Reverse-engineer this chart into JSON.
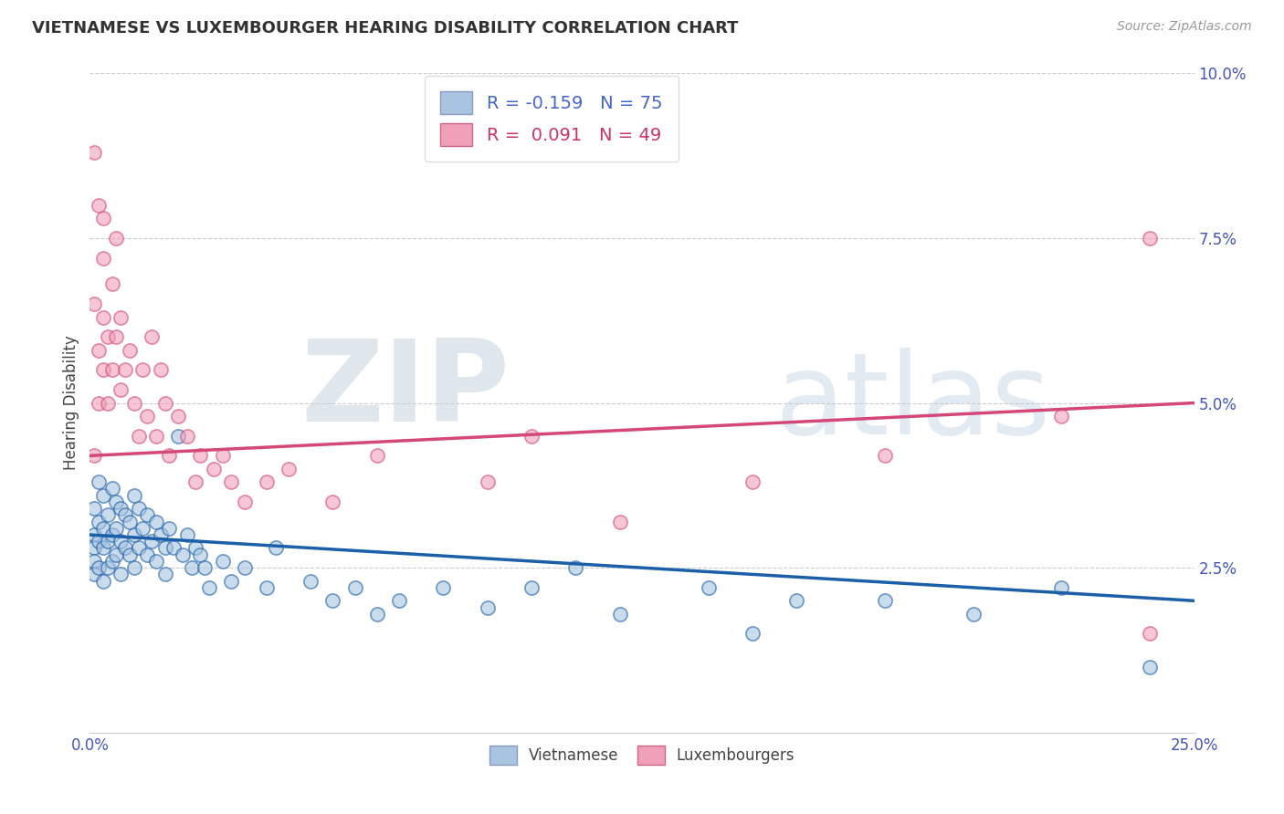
{
  "title": "VIETNAMESE VS LUXEMBOURGER HEARING DISABILITY CORRELATION CHART",
  "source": "Source: ZipAtlas.com",
  "ylabel": "Hearing Disability",
  "xlim": [
    0.0,
    0.25
  ],
  "ylim": [
    0.0,
    0.1
  ],
  "xticks": [
    0.0,
    0.05,
    0.1,
    0.15,
    0.2,
    0.25
  ],
  "yticks": [
    0.0,
    0.025,
    0.05,
    0.075,
    0.1
  ],
  "xtick_labels": [
    "0.0%",
    "",
    "",
    "",
    "",
    "25.0%"
  ],
  "ytick_labels": [
    "",
    "2.5%",
    "5.0%",
    "7.5%",
    "10.0%"
  ],
  "background_color": "#ffffff",
  "watermark_zip": "ZIP",
  "watermark_atlas": "atlas",
  "vietnamese_R": -0.159,
  "vietnamese_N": 75,
  "luxembourger_R": 0.091,
  "luxembourger_N": 49,
  "vietnamese_color": "#a8c4e0",
  "luxembourger_color": "#f0a0b8",
  "vietnamese_line_color": "#1a5fa8",
  "luxembourger_line_color": "#d44878",
  "legend_label_vietnamese": "Vietnamese",
  "legend_label_luxembourger": "Luxembourgers",
  "viet_line_x0": 0.0,
  "viet_line_y0": 0.03,
  "viet_line_x1": 0.25,
  "viet_line_y1": 0.02,
  "lux_line_x0": 0.0,
  "lux_line_y0": 0.042,
  "lux_line_x1": 0.25,
  "lux_line_y1": 0.05,
  "viet_pts_x": [
    0.001,
    0.001,
    0.001,
    0.001,
    0.001,
    0.002,
    0.002,
    0.002,
    0.002,
    0.003,
    0.003,
    0.003,
    0.003,
    0.004,
    0.004,
    0.004,
    0.005,
    0.005,
    0.005,
    0.006,
    0.006,
    0.006,
    0.007,
    0.007,
    0.007,
    0.008,
    0.008,
    0.009,
    0.009,
    0.01,
    0.01,
    0.01,
    0.011,
    0.011,
    0.012,
    0.013,
    0.013,
    0.014,
    0.015,
    0.015,
    0.016,
    0.017,
    0.017,
    0.018,
    0.019,
    0.02,
    0.021,
    0.022,
    0.023,
    0.024,
    0.025,
    0.026,
    0.027,
    0.03,
    0.032,
    0.035,
    0.04,
    0.042,
    0.05,
    0.055,
    0.06,
    0.065,
    0.07,
    0.08,
    0.09,
    0.1,
    0.11,
    0.12,
    0.14,
    0.15,
    0.16,
    0.18,
    0.2,
    0.22,
    0.24
  ],
  "viet_pts_y": [
    0.034,
    0.03,
    0.028,
    0.026,
    0.024,
    0.038,
    0.032,
    0.029,
    0.025,
    0.036,
    0.031,
    0.028,
    0.023,
    0.033,
    0.029,
    0.025,
    0.037,
    0.03,
    0.026,
    0.035,
    0.031,
    0.027,
    0.034,
    0.029,
    0.024,
    0.033,
    0.028,
    0.032,
    0.027,
    0.036,
    0.03,
    0.025,
    0.034,
    0.028,
    0.031,
    0.033,
    0.027,
    0.029,
    0.032,
    0.026,
    0.03,
    0.028,
    0.024,
    0.031,
    0.028,
    0.045,
    0.027,
    0.03,
    0.025,
    0.028,
    0.027,
    0.025,
    0.022,
    0.026,
    0.023,
    0.025,
    0.022,
    0.028,
    0.023,
    0.02,
    0.022,
    0.018,
    0.02,
    0.022,
    0.019,
    0.022,
    0.025,
    0.018,
    0.022,
    0.015,
    0.02,
    0.02,
    0.018,
    0.022,
    0.01
  ],
  "lux_pts_x": [
    0.001,
    0.001,
    0.002,
    0.002,
    0.003,
    0.003,
    0.003,
    0.004,
    0.004,
    0.005,
    0.005,
    0.006,
    0.006,
    0.007,
    0.007,
    0.008,
    0.009,
    0.01,
    0.011,
    0.012,
    0.013,
    0.014,
    0.015,
    0.016,
    0.017,
    0.018,
    0.02,
    0.022,
    0.024,
    0.025,
    0.028,
    0.03,
    0.032,
    0.035,
    0.04,
    0.045,
    0.055,
    0.065,
    0.09,
    0.1,
    0.12,
    0.15,
    0.18,
    0.22,
    0.24,
    0.001,
    0.002,
    0.003,
    0.24
  ],
  "lux_pts_y": [
    0.042,
    0.065,
    0.058,
    0.05,
    0.072,
    0.063,
    0.055,
    0.06,
    0.05,
    0.068,
    0.055,
    0.075,
    0.06,
    0.063,
    0.052,
    0.055,
    0.058,
    0.05,
    0.045,
    0.055,
    0.048,
    0.06,
    0.045,
    0.055,
    0.05,
    0.042,
    0.048,
    0.045,
    0.038,
    0.042,
    0.04,
    0.042,
    0.038,
    0.035,
    0.038,
    0.04,
    0.035,
    0.042,
    0.038,
    0.045,
    0.032,
    0.038,
    0.042,
    0.048,
    0.015,
    0.088,
    0.08,
    0.078,
    0.075
  ]
}
